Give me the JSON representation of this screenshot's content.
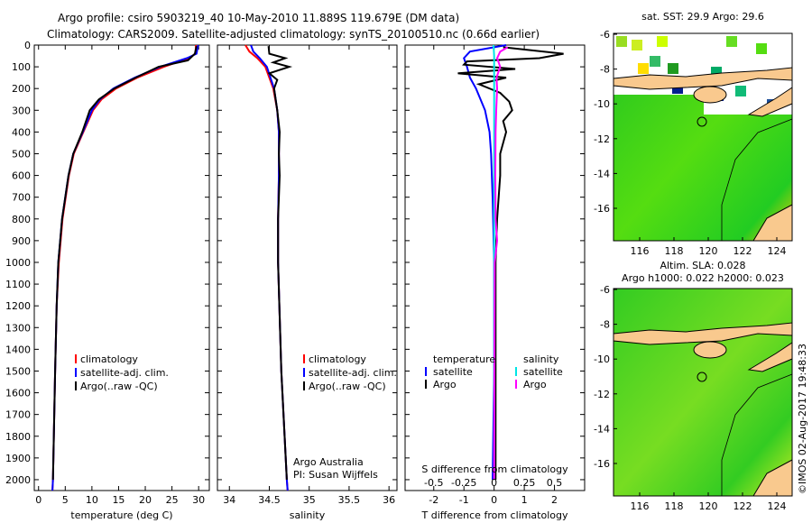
{
  "title_line1": "Argo profile: csiro 5903219_40 10-May-2010 11.889S 119.679E (DM data)",
  "title_line2": "Climatology: CARS2009. Satellite-adjusted climatology: synTS_20100510.nc (0.66d earlier)",
  "credit": "©IMOS 02-Aug-2017 19:48:33",
  "colors": {
    "climatology": "#ff0000",
    "satellite": "#0000ff",
    "argo": "#000000",
    "sal_satellite": "#00e5e5",
    "sal_argo": "#ff00ff",
    "ocean": "#22cc22",
    "land": "#f9c98e"
  },
  "chart_data": [
    {
      "type": "line",
      "xlabel": "temperature (deg C)",
      "ylabel": "depth",
      "xlim": [
        -0.8,
        32
      ],
      "ylim": [
        2050,
        0
      ],
      "xticks": [
        0,
        5,
        10,
        15,
        20,
        25,
        30
      ],
      "yticks": [
        0,
        100,
        200,
        300,
        400,
        500,
        600,
        700,
        800,
        900,
        1000,
        1100,
        1200,
        1300,
        1400,
        1500,
        1600,
        1700,
        1800,
        1900,
        2000
      ],
      "legend": [
        "climatology",
        "satellite-adj. clim.",
        "Argo(..raw -QC)"
      ],
      "series": [
        {
          "name": "climatology",
          "color": "#ff0000",
          "depth": [
            0,
            40,
            60,
            100,
            150,
            200,
            250,
            300,
            400,
            500,
            600,
            800,
            1000,
            1200,
            1500,
            2000,
            2050
          ],
          "values": [
            29.5,
            29.4,
            28.2,
            23.5,
            18.5,
            14.5,
            11.8,
            10.2,
            8.4,
            6.6,
            5.7,
            4.5,
            3.8,
            3.4,
            3.1,
            2.7,
            2.6
          ]
        },
        {
          "name": "satellite-adj. clim.",
          "color": "#0000ff",
          "depth": [
            0,
            40,
            60,
            100,
            150,
            200,
            250,
            300,
            400,
            500,
            600,
            800,
            1000,
            1200,
            1500,
            2000,
            2050
          ],
          "values": [
            29.9,
            29.6,
            27.8,
            22.8,
            18.0,
            14.0,
            11.5,
            10.0,
            8.3,
            6.5,
            5.6,
            4.4,
            3.7,
            3.4,
            3.1,
            2.7,
            2.6
          ]
        },
        {
          "name": "Argo(..raw -QC)",
          "color": "#000000",
          "depth": [
            5,
            40,
            70,
            100,
            150,
            200,
            250,
            300,
            400,
            500,
            600,
            800,
            1000,
            1200,
            1500,
            2000
          ],
          "values": [
            29.6,
            29.3,
            28.0,
            22.5,
            18.2,
            14.2,
            11.3,
            9.6,
            8.2,
            6.5,
            5.6,
            4.4,
            3.7,
            3.4,
            3.1,
            2.7
          ]
        }
      ]
    },
    {
      "type": "line",
      "xlabel": "salinity",
      "xlim": [
        33.85,
        36.1
      ],
      "ylim": [
        2050,
        0
      ],
      "xticks": [
        34,
        34.5,
        35,
        35.5,
        36
      ],
      "legend": [
        "climatology",
        "satellite-adj. clim.",
        "Argo(..raw -QC)"
      ],
      "annotation": [
        "Argo Australia",
        "PI: Susan Wijffels"
      ],
      "series": [
        {
          "name": "climatology",
          "color": "#ff0000",
          "depth": [
            0,
            30,
            60,
            100,
            200,
            300,
            400,
            600,
            800,
            1000,
            1500,
            2000,
            2050
          ],
          "values": [
            34.2,
            34.25,
            34.35,
            34.45,
            34.55,
            34.6,
            34.62,
            34.62,
            34.61,
            34.61,
            34.65,
            34.72,
            34.73
          ]
        },
        {
          "name": "satellite-adj. clim.",
          "color": "#0000ff",
          "depth": [
            0,
            30,
            60,
            100,
            200,
            300,
            400,
            600,
            800,
            1000,
            1500,
            2000,
            2050
          ],
          "values": [
            34.27,
            34.3,
            34.38,
            34.47,
            34.56,
            34.6,
            34.62,
            34.62,
            34.61,
            34.61,
            34.65,
            34.72,
            34.73
          ]
        },
        {
          "name": "Argo(..raw -QC)",
          "color": "#000000",
          "depth": [
            5,
            40,
            60,
            80,
            100,
            130,
            160,
            200,
            300,
            400,
            500,
            600,
            800,
            1000,
            1500,
            2000
          ],
          "values": [
            34.49,
            34.5,
            34.7,
            34.55,
            34.75,
            34.5,
            34.6,
            34.56,
            34.6,
            34.63,
            34.62,
            34.63,
            34.61,
            34.61,
            34.65,
            34.72
          ]
        }
      ]
    },
    {
      "type": "line",
      "xlabel": "T difference from climatology",
      "xlabel2": "S difference from climatology",
      "xlim": [
        -2.95,
        3.0
      ],
      "xticks": [
        -2,
        -1,
        0,
        1,
        2
      ],
      "xticks2": [
        -0.5,
        -0.25,
        0,
        0.25,
        0.5
      ],
      "ylim": [
        2050,
        0
      ],
      "legend_temperature": {
        "heading": "temperature",
        "items": [
          "satellite",
          "Argo"
        ]
      },
      "legend_salinity": {
        "heading": "salinity",
        "items": [
          "satellite",
          "Argo"
        ]
      },
      "series": [
        {
          "name": "temperature satellite",
          "color": "#0000ff",
          "depth": [
            0,
            30,
            60,
            100,
            150,
            200,
            300,
            400,
            500,
            700,
            1000,
            1500,
            2000
          ],
          "values": [
            0.4,
            -0.8,
            -1.0,
            -0.9,
            -0.8,
            -0.6,
            -0.3,
            -0.15,
            -0.1,
            -0.05,
            0,
            0,
            -0.05
          ]
        },
        {
          "name": "temperature Argo",
          "color": "#000000",
          "depth": [
            10,
            40,
            60,
            75,
            90,
            110,
            130,
            150,
            180,
            220,
            260,
            300,
            350,
            400,
            500,
            600,
            800,
            1000,
            1500,
            2000
          ],
          "values": [
            0.3,
            2.3,
            1.5,
            -0.9,
            -1.0,
            0.7,
            -1.2,
            0.4,
            -0.5,
            0.2,
            0.5,
            0.6,
            0.3,
            0.4,
            0.2,
            0.2,
            0.1,
            0.05,
            0.05,
            0.05
          ]
        },
        {
          "name": "salinity satellite",
          "color": "#00e5e5",
          "depth": [
            0,
            50,
            100,
            200,
            400,
            1000,
            2000
          ],
          "values": [
            -0.02,
            0.0,
            0.0,
            0.0,
            0.0,
            0.0,
            0.0
          ]
        },
        {
          "name": "salinity Argo",
          "color": "#ff00ff",
          "depth": [
            10,
            30,
            60,
            100,
            150,
            200,
            300,
            400,
            600,
            800,
            900,
            1000,
            1500,
            2000
          ],
          "values": [
            0.45,
            0.2,
            0.1,
            0.2,
            0.08,
            0.1,
            0.07,
            0.05,
            0.04,
            0.05,
            0.1,
            0.02,
            0.01,
            0.0
          ]
        }
      ]
    }
  ],
  "maps": [
    {
      "title": [
        "sat. SST: 29.9 Argo: 29.6"
      ],
      "xticks": [
        "116",
        "118",
        "120",
        "122",
        "124"
      ],
      "yticks": [
        "-6",
        "-8",
        "-10",
        "-12",
        "-14",
        "-16"
      ]
    },
    {
      "title": [
        "Altim. SLA: 0.028",
        "Argo h1000: 0.022 h2000: 0.023"
      ],
      "xticks": [
        "116",
        "118",
        "120",
        "122",
        "124"
      ],
      "yticks": [
        "-6",
        "-8",
        "-10",
        "-12",
        "-14",
        "-16"
      ]
    }
  ]
}
